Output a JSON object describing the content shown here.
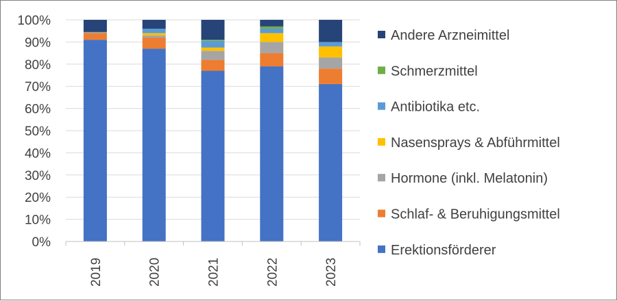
{
  "chart_data": {
    "type": "bar",
    "stacked": true,
    "percent": true,
    "categories": [
      "2019",
      "2020",
      "2021",
      "2022",
      "2023"
    ],
    "ylim": [
      0,
      100
    ],
    "yticks": [
      0,
      10,
      20,
      30,
      40,
      50,
      60,
      70,
      80,
      90,
      100
    ],
    "ytick_labels": [
      "0%",
      "10%",
      "20%",
      "30%",
      "40%",
      "50%",
      "60%",
      "70%",
      "80%",
      "90%",
      "100%"
    ],
    "grid": true,
    "legend_position": "right",
    "series": [
      {
        "name": "Erektionsförderer",
        "color": "#4472C4",
        "values": [
          91,
          87,
          77,
          79,
          71
        ]
      },
      {
        "name": "Schlaf- & Beruhigungsmittel",
        "color": "#ED7D31",
        "values": [
          3,
          5,
          5,
          6,
          7
        ]
      },
      {
        "name": "Hormone (inkl. Melatonin)",
        "color": "#A5A5A5",
        "values": [
          0.5,
          1,
          4,
          5,
          5
        ]
      },
      {
        "name": "Nasensprays & Abführmittel",
        "color": "#FFC000",
        "values": [
          0,
          1,
          1.5,
          4,
          5
        ]
      },
      {
        "name": "Antibiotika etc.",
        "color": "#5B9BD5",
        "values": [
          0,
          2,
          3,
          2,
          2
        ]
      },
      {
        "name": "Schmerzmittel",
        "color": "#70AD47",
        "values": [
          0,
          0,
          0.5,
          1,
          0
        ]
      },
      {
        "name": "Andere Arzneimittel",
        "color": "#264478",
        "values": [
          5.5,
          4,
          9,
          3,
          10
        ]
      }
    ]
  }
}
